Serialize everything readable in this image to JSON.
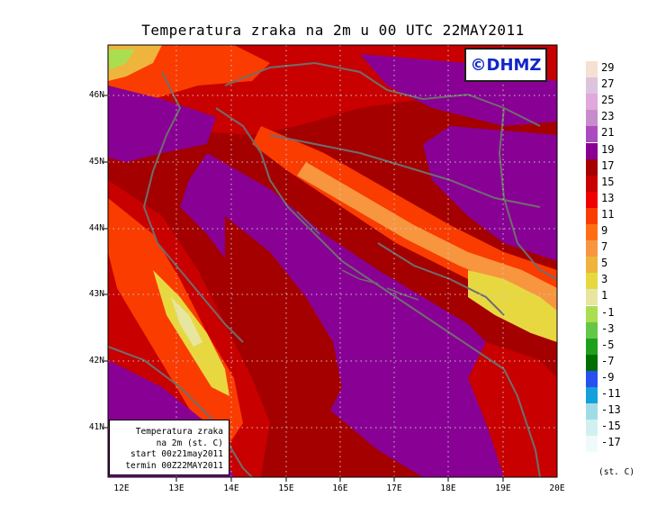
{
  "title": "Temperatura zraka na 2m u 00 UTC 22MAY2011",
  "logo_text": "©DHMZ",
  "info_box": {
    "line1": "Temperatura zraka",
    "line2": "na 2m (st. C)",
    "line3": "start 00z21may2011",
    "line4": "termin 00Z22MAY2011"
  },
  "lat_labels": [
    "46N",
    "45N",
    "44N",
    "43N",
    "42N",
    "41N"
  ],
  "lon_labels": [
    "12E",
    "13E",
    "14E",
    "15E",
    "16E",
    "17E",
    "18E",
    "19E",
    "20E"
  ],
  "colorbar": {
    "unit": "(st. C)",
    "labels": [
      "29",
      "27",
      "25",
      "23",
      "21",
      "19",
      "17",
      "15",
      "13",
      "11",
      "9",
      "7",
      "5",
      "3",
      "1",
      "-1",
      "-3",
      "-5",
      "-7",
      "-9",
      "-11",
      "-13",
      "-15",
      "-17"
    ],
    "colors": [
      "#f6e0d2",
      "#dcc4de",
      "#e0a8dc",
      "#c88ccc",
      "#aa4cc0",
      "#880094",
      "#a50000",
      "#c80000",
      "#f00000",
      "#fa3c00",
      "#ff6e14",
      "#f89640",
      "#eeb43c",
      "#e8d840",
      "#e6e6a0",
      "#aade50",
      "#64c846",
      "#1ea01e",
      "#006e00",
      "#2850f0",
      "#14a0dc",
      "#a0dce6",
      "#d2f0f0",
      "#f0fafa"
    ]
  }
}
